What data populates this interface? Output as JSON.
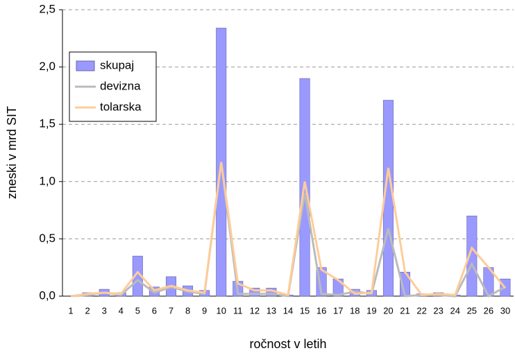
{
  "chart_data": {
    "type": "bar_line",
    "x_label": "ročnost v letih",
    "y_label": "zneski v mrd SIT",
    "categories": [
      "1",
      "2",
      "3",
      "4",
      "5",
      "6",
      "7",
      "8",
      "9",
      "10",
      "11",
      "12",
      "13",
      "14",
      "15",
      "16",
      "17",
      "18",
      "19",
      "20",
      "21",
      "22",
      "23",
      "24",
      "25",
      "26",
      "30"
    ],
    "series": [
      {
        "name": "skupaj",
        "kind": "bar",
        "color": "#9999ff",
        "values": [
          0,
          0.03,
          0.06,
          0.03,
          0.35,
          0.08,
          0.17,
          0.09,
          0.05,
          2.34,
          0.13,
          0.07,
          0.07,
          0.01,
          1.9,
          0.25,
          0.15,
          0.06,
          0.05,
          1.71,
          0.21,
          0.02,
          0.03,
          0.01,
          0.7,
          0.25,
          0.15
        ]
      },
      {
        "name": "devizna",
        "kind": "line",
        "color": "#bbbbbb",
        "values": [
          0,
          0.01,
          0.03,
          0.01,
          0.14,
          0.03,
          0.08,
          0.04,
          0.02,
          1.17,
          0.02,
          0.02,
          0.02,
          0,
          0.9,
          0.02,
          0.01,
          0.04,
          0.02,
          0.59,
          0,
          0.01,
          0.01,
          0,
          0.28,
          0,
          0.08
        ]
      },
      {
        "name": "tolarska",
        "kind": "line",
        "color": "#ffcc99",
        "values": [
          0,
          0.02,
          0.03,
          0.02,
          0.21,
          0.05,
          0.09,
          0.05,
          0.03,
          1.17,
          0.11,
          0.05,
          0.05,
          0.01,
          1.0,
          0.23,
          0.14,
          0.02,
          0.03,
          1.12,
          0.21,
          0.01,
          0.02,
          0.01,
          0.42,
          0.25,
          0.07
        ]
      }
    ],
    "ylim": [
      0,
      2.5
    ],
    "yticks": [
      {
        "value": 0,
        "label": "0,0"
      },
      {
        "value": 0.5,
        "label": "0,5"
      },
      {
        "value": 1,
        "label": "1,0"
      },
      {
        "value": 1.5,
        "label": "1,5"
      },
      {
        "value": 2,
        "label": "2,0"
      },
      {
        "value": 2.5,
        "label": "2,5"
      }
    ],
    "grid": true,
    "legend": "upper left"
  }
}
